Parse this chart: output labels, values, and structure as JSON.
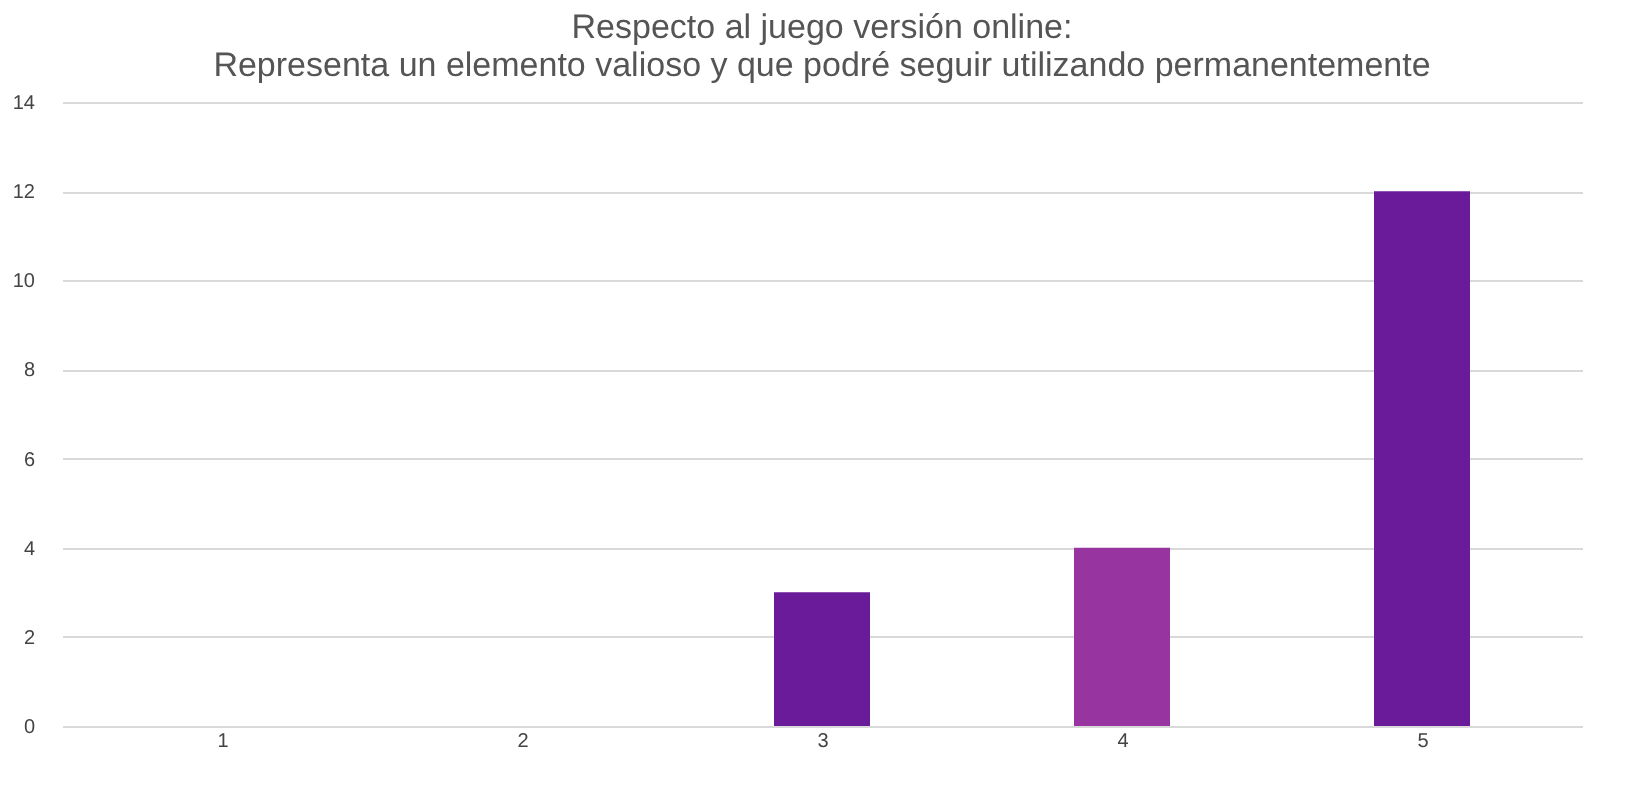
{
  "chart_data": {
    "type": "bar",
    "title": [
      "Respecto al juego versión online:",
      "Representa un elemento valioso y que podré seguir utilizando permanentemente"
    ],
    "categories": [
      "1",
      "2",
      "3",
      "4",
      "5"
    ],
    "values": [
      0,
      0,
      3,
      4,
      12
    ],
    "colors": [
      "#6a1b9a",
      "#6a1b9a",
      "#6a1b9a",
      "#97349f",
      "#6a1b9a"
    ],
    "ylim": [
      0,
      14
    ],
    "yticks": [
      0,
      2,
      4,
      6,
      8,
      10,
      12,
      14
    ],
    "grid": "y"
  }
}
